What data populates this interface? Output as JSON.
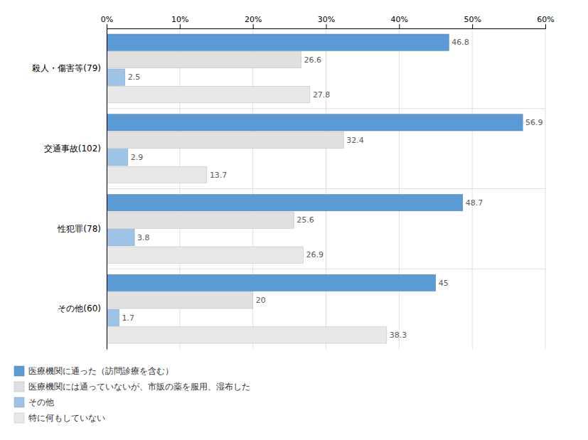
{
  "chart_data": {
    "type": "bar",
    "orientation": "horizontal",
    "categories": [
      "殺人・傷害等(79)",
      "交通事故(102)",
      "性犯罪(78)",
      "その他(60)"
    ],
    "series": [
      {
        "name": "医療機関に通った（訪問診療を含む）",
        "color": "#5B9BD5",
        "values": [
          46.8,
          56.9,
          48.7,
          45.0
        ]
      },
      {
        "name": "医療機関には通っていないが、市販の薬を服用、湿布した",
        "color": "#E0E0E0",
        "values": [
          26.6,
          32.4,
          25.6,
          20.0
        ]
      },
      {
        "name": "その他",
        "color": "#9DC3E6",
        "values": [
          2.5,
          2.9,
          3.8,
          1.7
        ]
      },
      {
        "name": "特に何もしていない",
        "color": "#E8E8E8",
        "values": [
          27.8,
          13.7,
          26.9,
          38.3
        ]
      }
    ],
    "xlim": [
      0,
      60
    ],
    "xticks": [
      {
        "value": 0,
        "label": "0%"
      },
      {
        "value": 10,
        "label": "10%"
      },
      {
        "value": 20,
        "label": "20%"
      },
      {
        "value": 30,
        "label": "30%"
      },
      {
        "value": 40,
        "label": "40%"
      },
      {
        "value": 50,
        "label": "50%"
      },
      {
        "value": 60,
        "label": "60%"
      }
    ],
    "grid": true,
    "data_labels": true,
    "legend": "bottom"
  }
}
